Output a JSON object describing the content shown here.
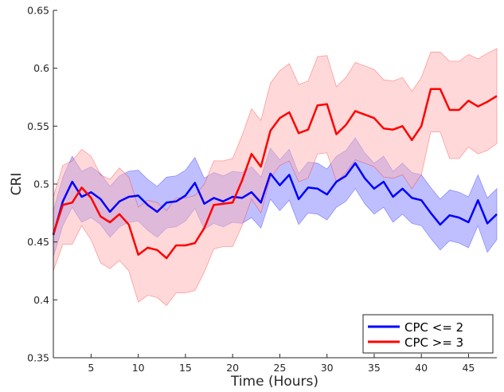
{
  "chart_data": {
    "type": "line",
    "title": "",
    "xlabel": "Time (Hours)",
    "ylabel": "CRI",
    "xlim": [
      1,
      48
    ],
    "ylim": [
      0.35,
      0.65
    ],
    "xticks": [
      5,
      10,
      15,
      20,
      25,
      30,
      35,
      40,
      45
    ],
    "xtick_labels": [
      "5",
      "10",
      "15",
      "20",
      "25",
      "30",
      "35",
      "40",
      "45"
    ],
    "yticks": [
      0.35,
      0.4,
      0.45,
      0.5,
      0.55,
      0.6,
      0.65
    ],
    "ytick_labels": [
      "0.35",
      "0.4",
      "0.45",
      "0.5",
      "0.55",
      "0.6",
      "0.65"
    ],
    "grid": false,
    "legend_position": "bottom-right",
    "x": [
      1,
      2,
      3,
      4,
      5,
      6,
      7,
      8,
      9,
      10,
      11,
      12,
      13,
      14,
      15,
      16,
      17,
      18,
      19,
      20,
      21,
      22,
      23,
      24,
      25,
      26,
      27,
      28,
      29,
      30,
      31,
      32,
      33,
      34,
      35,
      36,
      37,
      38,
      39,
      40,
      41,
      42,
      43,
      44,
      45,
      46,
      47,
      48
    ],
    "series": [
      {
        "name": "CPC <= 2",
        "color": "#0000ff",
        "fill_color": "#8080ff",
        "values": [
          0.456,
          0.485,
          0.502,
          0.489,
          0.493,
          0.487,
          0.476,
          0.485,
          0.489,
          0.49,
          0.482,
          0.476,
          0.484,
          0.485,
          0.49,
          0.501,
          0.483,
          0.488,
          0.485,
          0.489,
          0.488,
          0.493,
          0.484,
          0.509,
          0.499,
          0.508,
          0.487,
          0.497,
          0.496,
          0.491,
          0.502,
          0.507,
          0.518,
          0.505,
          0.496,
          0.502,
          0.489,
          0.496,
          0.488,
          0.486,
          0.475,
          0.465,
          0.473,
          0.471,
          0.467,
          0.486,
          0.466,
          0.474
        ],
        "upper": [
          0.477,
          0.506,
          0.524,
          0.511,
          0.515,
          0.509,
          0.498,
          0.507,
          0.511,
          0.512,
          0.504,
          0.498,
          0.506,
          0.507,
          0.512,
          0.523,
          0.505,
          0.51,
          0.507,
          0.511,
          0.51,
          0.515,
          0.506,
          0.531,
          0.521,
          0.53,
          0.509,
          0.519,
          0.518,
          0.513,
          0.524,
          0.529,
          0.54,
          0.527,
          0.518,
          0.524,
          0.511,
          0.518,
          0.51,
          0.508,
          0.497,
          0.487,
          0.495,
          0.493,
          0.489,
          0.508,
          0.488,
          0.496
        ],
        "lower": [
          0.437,
          0.464,
          0.48,
          0.467,
          0.471,
          0.465,
          0.454,
          0.463,
          0.467,
          0.468,
          0.46,
          0.454,
          0.462,
          0.463,
          0.468,
          0.479,
          0.461,
          0.466,
          0.463,
          0.467,
          0.466,
          0.471,
          0.462,
          0.487,
          0.477,
          0.486,
          0.465,
          0.475,
          0.474,
          0.469,
          0.48,
          0.485,
          0.496,
          0.483,
          0.474,
          0.48,
          0.467,
          0.474,
          0.466,
          0.464,
          0.453,
          0.443,
          0.451,
          0.449,
          0.445,
          0.464,
          0.441,
          0.452
        ]
      },
      {
        "name": "CPC >= 3",
        "color": "#ff0000",
        "fill_color": "#ffb3b3",
        "values": [
          0.457,
          0.482,
          0.484,
          0.497,
          0.488,
          0.472,
          0.467,
          0.474,
          0.465,
          0.439,
          0.445,
          0.443,
          0.436,
          0.447,
          0.447,
          0.449,
          0.462,
          0.482,
          0.483,
          0.484,
          0.503,
          0.526,
          0.515,
          0.546,
          0.557,
          0.562,
          0.544,
          0.547,
          0.568,
          0.569,
          0.543,
          0.551,
          0.563,
          0.56,
          0.557,
          0.548,
          0.547,
          0.55,
          0.538,
          0.55,
          0.582,
          0.582,
          0.564,
          0.564,
          0.572,
          0.567,
          0.571,
          0.576
        ],
        "upper": [
          0.489,
          0.516,
          0.52,
          0.53,
          0.524,
          0.508,
          0.504,
          0.514,
          0.506,
          0.48,
          0.486,
          0.484,
          0.477,
          0.488,
          0.488,
          0.49,
          0.5,
          0.52,
          0.52,
          0.522,
          0.542,
          0.565,
          0.555,
          0.587,
          0.598,
          0.604,
          0.586,
          0.589,
          0.61,
          0.611,
          0.584,
          0.592,
          0.605,
          0.602,
          0.599,
          0.59,
          0.589,
          0.592,
          0.58,
          0.592,
          0.614,
          0.614,
          0.606,
          0.606,
          0.612,
          0.608,
          0.613,
          0.617
        ],
        "lower": [
          0.425,
          0.448,
          0.448,
          0.464,
          0.452,
          0.432,
          0.427,
          0.434,
          0.425,
          0.398,
          0.404,
          0.402,
          0.395,
          0.406,
          0.406,
          0.408,
          0.424,
          0.444,
          0.446,
          0.446,
          0.464,
          0.487,
          0.475,
          0.505,
          0.516,
          0.52,
          0.502,
          0.505,
          0.526,
          0.527,
          0.502,
          0.51,
          0.521,
          0.518,
          0.515,
          0.506,
          0.505,
          0.508,
          0.496,
          0.508,
          0.545,
          0.545,
          0.522,
          0.522,
          0.532,
          0.526,
          0.529,
          0.535
        ]
      }
    ]
  }
}
